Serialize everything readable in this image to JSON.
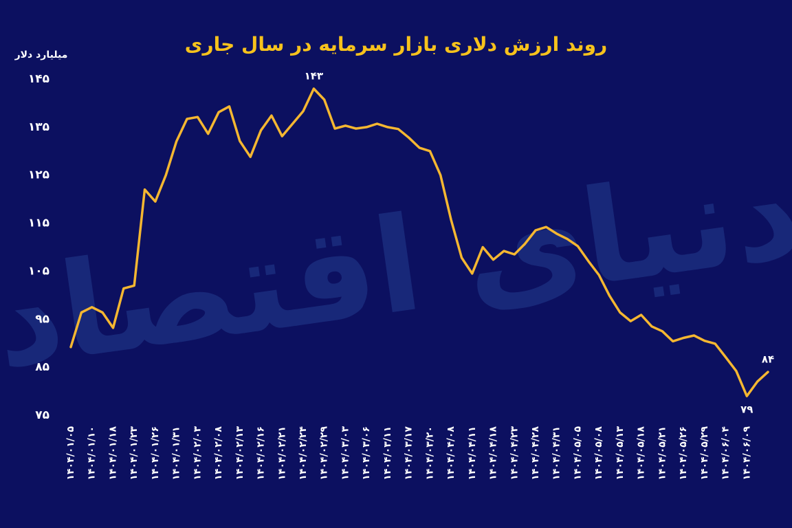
{
  "chart_data": {
    "type": "line",
    "title": "روند ارزش دلاری بازار سرمایه در سال جاری",
    "y_label": "میلیارد دلار",
    "watermark": "دنیای اقتصاد",
    "categories": [
      "۱۴۰۴/۰۱/۰۵",
      null,
      "۱۴۰۴/۰۱/۱۰",
      null,
      "۱۴۰۴/۰۱/۱۸",
      null,
      "۱۴۰۴/۰۱/۲۳",
      null,
      "۱۴۰۴/۰۱/۲۶",
      null,
      "۱۴۰۴/۰۱/۳۱",
      null,
      "۱۴۰۴/۰۲/۰۳",
      null,
      "۱۴۰۴/۰۲/۰۸",
      null,
      "۱۴۰۴/۰۲/۱۳",
      null,
      "۱۴۰۴/۰۲/۱۶",
      null,
      "۱۴۰۴/۰۲/۲۱",
      null,
      "۱۴۰۴/۰۲/۲۴",
      null,
      "۱۴۰۴/۰۲/۲۹",
      null,
      "۱۴۰۴/۰۳/۰۳",
      null,
      "۱۴۰۴/۰۳/۰۶",
      null,
      "۱۴۰۴/۰۳/۱۱",
      null,
      "۱۴۰۴/۰۳/۱۷",
      null,
      "۱۴۰۴/۰۳/۲۰",
      null,
      "۱۴۰۴/۰۴/۰۸",
      null,
      "۱۴۰۴/۰۴/۱۱",
      null,
      "۱۴۰۴/۰۴/۱۸",
      null,
      "۱۴۰۴/۰۴/۲۳",
      null,
      "۱۴۰۴/۰۴/۲۸",
      null,
      "۱۴۰۴/۰۴/۳۱",
      null,
      "۱۴۰۴/۰۵/۰۵",
      null,
      "۱۴۰۴/۰۵/۰۸",
      null,
      "۱۴۰۴/۰۵/۱۳",
      null,
      "۱۴۰۴/۰۵/۱۸",
      null,
      "۱۴۰۴/۰۵/۲۱",
      null,
      "۱۴۰۴/۰۵/۲۶",
      null,
      "۱۴۰۴/۰۵/۲۹",
      null,
      "۱۴۰۴/۰۶/۰۴",
      null,
      "۱۴۰۴/۰۶/۰۹",
      null,
      null
    ],
    "values": [
      89.2,
      96.4,
      97.5,
      96.4,
      93.2,
      101.4,
      102,
      122,
      119.5,
      125,
      132,
      136.7,
      137.1,
      133.6,
      138.1,
      139.3,
      132.1,
      128.8,
      134.3,
      137.4,
      133.1,
      135.7,
      138.3,
      143,
      140.7,
      134.7,
      135.3,
      134.7,
      135,
      135.7,
      135,
      134.6,
      132.8,
      130.7,
      130,
      125,
      115.7,
      107.8,
      104.5,
      110,
      107.4,
      109.2,
      108.5,
      110.7,
      113.5,
      114.2,
      112.8,
      111.7,
      110.2,
      107.1,
      104.2,
      99.9,
      96.4,
      94.6,
      95.9,
      93.5,
      92.5,
      90.4,
      91.1,
      91.6,
      90.5,
      89.9,
      87.1,
      84.2,
      79,
      82,
      84
    ],
    "value_labels": [
      null,
      null,
      null,
      null,
      null,
      null,
      null,
      null,
      null,
      null,
      null,
      null,
      null,
      null,
      null,
      null,
      null,
      null,
      null,
      null,
      null,
      null,
      null,
      "۱۴۳",
      null,
      null,
      null,
      null,
      null,
      null,
      null,
      null,
      null,
      null,
      null,
      null,
      null,
      null,
      null,
      null,
      null,
      null,
      null,
      null,
      null,
      null,
      null,
      null,
      null,
      null,
      null,
      null,
      null,
      null,
      null,
      null,
      null,
      null,
      null,
      null,
      null,
      null,
      null,
      null,
      "۷۹",
      null,
      "۸۴"
    ],
    "color": "#f5b731",
    "ylim": [
      75,
      145
    ],
    "yticks": [
      {
        "value": 75,
        "label": "۷۵"
      },
      {
        "value": 85,
        "label": "۸۵"
      },
      {
        "value": 95,
        "label": "۹۵"
      },
      {
        "value": 105,
        "label": "۱۰۵"
      },
      {
        "value": 115,
        "label": "۱۱۵"
      },
      {
        "value": 125,
        "label": "۱۲۵"
      },
      {
        "value": 135,
        "label": "۱۳۵"
      },
      {
        "value": 145,
        "label": "۱۴۵"
      }
    ],
    "grid": false
  }
}
